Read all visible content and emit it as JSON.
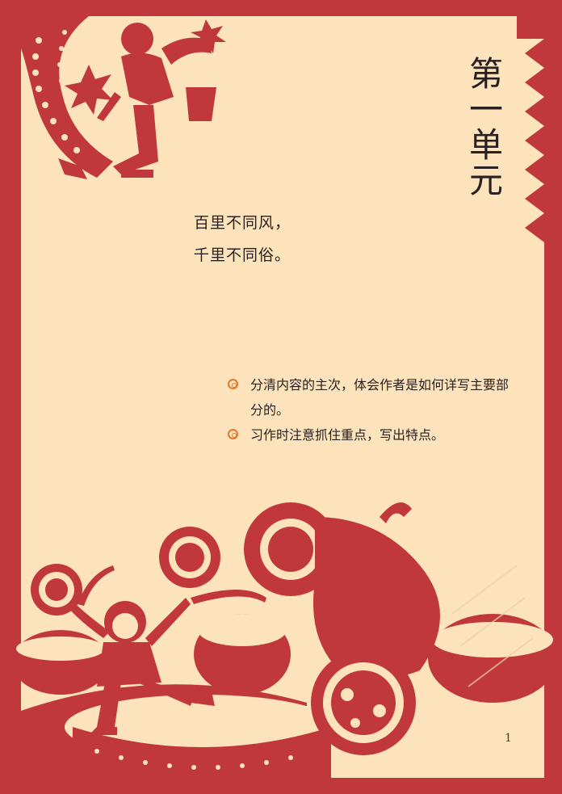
{
  "unit_title": [
    "第",
    "一",
    "单",
    "元"
  ],
  "poem": [
    "百里不同风，",
    "千里不同俗。"
  ],
  "learning_goals": [
    {
      "text": "分清内容的主次，体会作者是如何详写主要部分的。",
      "bullet_icon": "bullseye-icon"
    },
    {
      "text": "习作时注意抓住重点，写出特点。",
      "bullet_icon": "bullseye-icon"
    }
  ],
  "page_number": "1",
  "colors": {
    "paper": "#fce3bb",
    "frame_red": "#c0383b",
    "text": "#2a2020",
    "bullet_orange": "#e07a2c"
  }
}
